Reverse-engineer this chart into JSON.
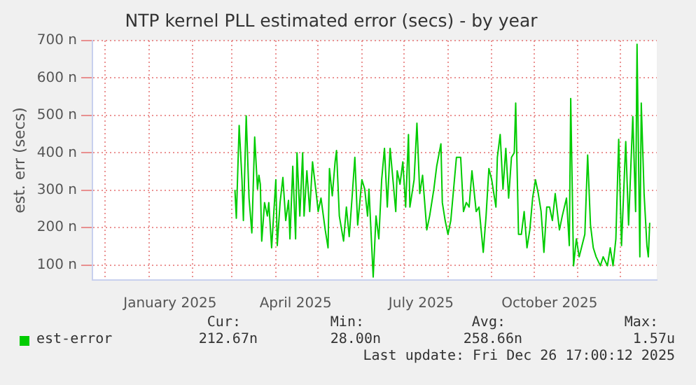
{
  "chart_data": {
    "type": "line",
    "title": "NTP kernel PLL estimated error (secs) - by year",
    "ylabel": "est. err (secs)",
    "xlim": [
      "2024-11-22",
      "2025-12-27"
    ],
    "xticks": [
      {
        "value": "2024-12-01",
        "label": null
      },
      {
        "value": "2025-01-01",
        "label": null
      },
      {
        "value": "2025-01-16",
        "label": "January 2025"
      },
      {
        "value": "2025-02-01",
        "label": null
      },
      {
        "value": "2025-03-01",
        "label": null
      },
      {
        "value": "2025-04-01",
        "label": null
      },
      {
        "value": "2025-04-15",
        "label": "April 2025"
      },
      {
        "value": "2025-05-01",
        "label": null
      },
      {
        "value": "2025-06-01",
        "label": null
      },
      {
        "value": "2025-07-01",
        "label": null
      },
      {
        "value": "2025-07-13",
        "label": "July 2025"
      },
      {
        "value": "2025-08-01",
        "label": null
      },
      {
        "value": "2025-09-01",
        "label": null
      },
      {
        "value": "2025-10-01",
        "label": null
      },
      {
        "value": "2025-10-12",
        "label": "October 2025"
      },
      {
        "value": "2025-11-01",
        "label": null
      },
      {
        "value": "2025-12-01",
        "label": null
      }
    ],
    "ylim": [
      60,
      700
    ],
    "yticks": [
      {
        "value": 100,
        "label": "100 n"
      },
      {
        "value": 200,
        "label": "200 n"
      },
      {
        "value": 300,
        "label": "300 n"
      },
      {
        "value": 400,
        "label": "400 n"
      },
      {
        "value": 500,
        "label": "500 n"
      },
      {
        "value": 600,
        "label": "600 n"
      },
      {
        "value": 700,
        "label": "700 n"
      }
    ],
    "grid": true,
    "legend": "bottom left",
    "marker": "none",
    "line_style": "solid",
    "annotations": [
      "Cur:",
      "Min:",
      "Avg:",
      "Max:",
      "212.67n",
      "28.00n",
      "258.66n",
      "1.57u",
      "Last update: Fri Dec 26 17:00:12 2025"
    ],
    "series": [
      {
        "name": "est-error",
        "color": "#00cc00",
        "x": [
          "2025-03-03",
          "2025-03-04",
          "2025-03-06",
          "2025-03-08",
          "2025-03-09",
          "2025-03-11",
          "2025-03-13",
          "2025-03-15",
          "2025-03-17",
          "2025-03-19",
          "2025-03-20",
          "2025-03-21",
          "2025-03-22",
          "2025-03-24",
          "2025-03-26",
          "2025-03-27",
          "2025-03-29",
          "2025-03-31",
          "2025-04-01",
          "2025-04-02",
          "2025-04-04",
          "2025-04-06",
          "2025-04-08",
          "2025-04-10",
          "2025-04-11",
          "2025-04-13",
          "2025-04-15",
          "2025-04-16",
          "2025-04-18",
          "2025-04-20",
          "2025-04-21",
          "2025-04-23",
          "2025-04-25",
          "2025-04-27",
          "2025-04-30",
          "2025-05-01",
          "2025-05-03",
          "2025-05-06",
          "2025-05-08",
          "2025-05-09",
          "2025-05-11",
          "2025-05-13",
          "2025-05-14",
          "2025-05-16",
          "2025-05-19",
          "2025-05-21",
          "2025-05-23",
          "2025-05-25",
          "2025-05-27",
          "2025-05-29",
          "2025-06-01",
          "2025-06-03",
          "2025-06-05",
          "2025-06-06",
          "2025-06-09",
          "2025-06-11",
          "2025-06-13",
          "2025-06-15",
          "2025-06-17",
          "2025-06-19",
          "2025-06-21",
          "2025-06-23",
          "2025-06-25",
          "2025-06-26",
          "2025-06-28",
          "2025-06-30",
          "2025-07-02",
          "2025-07-04",
          "2025-07-05",
          "2025-07-08",
          "2025-07-10",
          "2025-07-12",
          "2025-07-14",
          "2025-07-17",
          "2025-07-19",
          "2025-07-22",
          "2025-07-24",
          "2025-07-27",
          "2025-07-28",
          "2025-07-30",
          "2025-08-01",
          "2025-08-03",
          "2025-08-07",
          "2025-08-10",
          "2025-08-12",
          "2025-08-14",
          "2025-08-16",
          "2025-08-18",
          "2025-08-21",
          "2025-08-23",
          "2025-08-26",
          "2025-08-28",
          "2025-08-30",
          "2025-09-01",
          "2025-09-04",
          "2025-09-05",
          "2025-09-07",
          "2025-09-09",
          "2025-09-11",
          "2025-09-13",
          "2025-09-15",
          "2025-09-17",
          "2025-09-18",
          "2025-09-20",
          "2025-09-22",
          "2025-09-24",
          "2025-09-26",
          "2025-09-28",
          "2025-09-30",
          "2025-10-02",
          "2025-10-04",
          "2025-10-06",
          "2025-10-08",
          "2025-10-10",
          "2025-10-12",
          "2025-10-14",
          "2025-10-16",
          "2025-10-19",
          "2025-10-21",
          "2025-10-24",
          "2025-10-26",
          "2025-10-27",
          "2025-10-29",
          "2025-10-31",
          "2025-11-02",
          "2025-11-04",
          "2025-11-06",
          "2025-11-08",
          "2025-11-10",
          "2025-11-12",
          "2025-11-14",
          "2025-11-17",
          "2025-11-19",
          "2025-11-22",
          "2025-11-24",
          "2025-11-26",
          "2025-11-28",
          "2025-11-30",
          "2025-12-02",
          "2025-12-05",
          "2025-12-07",
          "2025-12-10",
          "2025-12-12",
          "2025-12-13",
          "2025-12-15",
          "2025-12-16",
          "2025-12-18",
          "2025-12-20",
          "2025-12-21",
          "2025-12-22"
        ],
        "values": [
          301,
          225,
          473,
          328,
          219,
          499,
          279,
          186,
          442,
          303,
          340,
          316,
          164,
          267,
          231,
          267,
          146,
          267,
          328,
          152,
          267,
          334,
          219,
          273,
          170,
          364,
          170,
          400,
          231,
          400,
          231,
          352,
          243,
          376,
          279,
          243,
          279,
          194,
          146,
          358,
          285,
          376,
          406,
          231,
          164,
          255,
          176,
          279,
          388,
          207,
          328,
          303,
          231,
          303,
          68,
          231,
          170,
          328,
          412,
          255,
          412,
          328,
          243,
          352,
          316,
          376,
          255,
          449,
          255,
          328,
          479,
          291,
          340,
          194,
          231,
          303,
          364,
          424,
          267,
          219,
          182,
          219,
          388,
          388,
          243,
          267,
          255,
          352,
          243,
          255,
          134,
          231,
          358,
          328,
          255,
          388,
          449,
          303,
          412,
          279,
          388,
          400,
          533,
          182,
          182,
          243,
          146,
          194,
          279,
          328,
          291,
          243,
          134,
          255,
          255,
          219,
          291,
          194,
          231,
          279,
          152,
          545,
          98,
          170,
          122,
          152,
          182,
          394,
          207,
          146,
          122,
          98,
          122,
          98,
          146,
          98,
          170,
          436,
          152,
          430,
          207,
          497,
          243,
          690,
          122,
          533,
          291,
          152,
          122,
          213
        ]
      }
    ]
  }
}
